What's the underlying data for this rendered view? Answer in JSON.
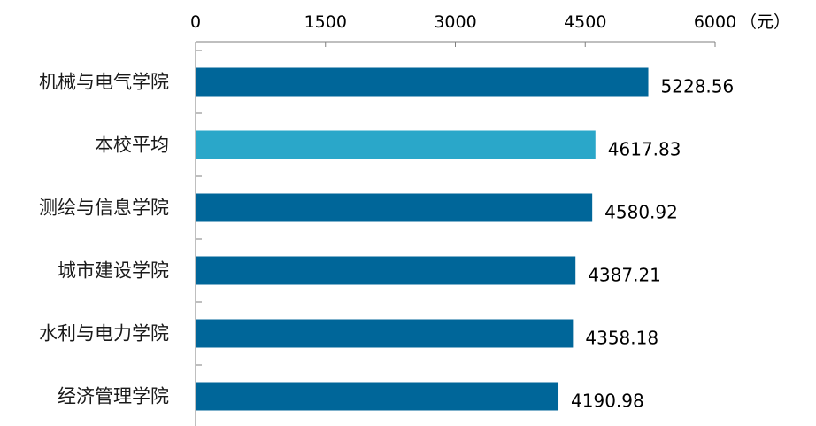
{
  "chart_data": {
    "type": "bar",
    "orientation": "horizontal",
    "title": "",
    "xlabel": "",
    "ylabel": "",
    "unit": "（元）",
    "xlim": [
      0,
      6000
    ],
    "xticks": [
      0,
      1500,
      3000,
      4500,
      6000
    ],
    "axis_position": "top",
    "grid": false,
    "legend": "none",
    "categories": [
      "机械与电气学院",
      "本校平均",
      "测绘与信息学院",
      "城市建设学院",
      "水利与电力学院",
      "经济管理学院"
    ],
    "values": [
      5228.56,
      4617.83,
      4580.92,
      4387.21,
      4358.18,
      4190.98
    ],
    "value_labels": [
      "5228.56",
      "4617.83",
      "4580.92",
      "4387.21",
      "4358.18",
      "4190.98"
    ],
    "colors": {
      "default": "#006699",
      "highlight": "#2AA7C9",
      "highlight_category": "本校平均"
    }
  }
}
